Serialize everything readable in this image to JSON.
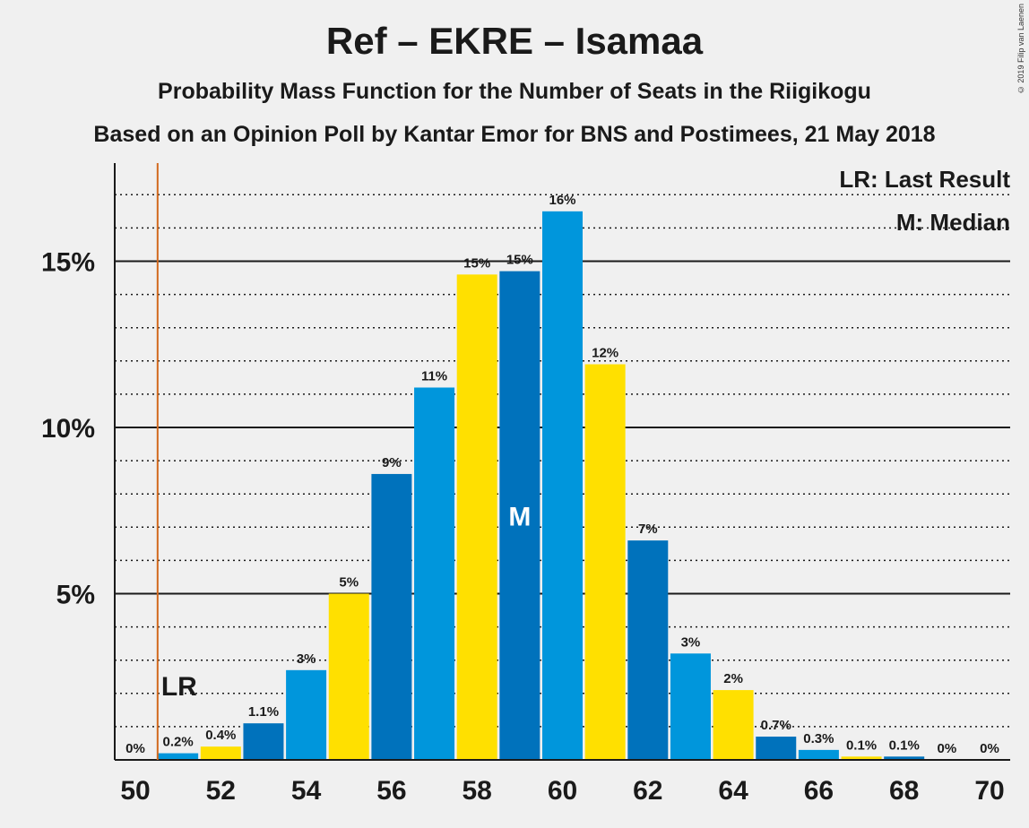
{
  "title": "Ref – EKRE – Isamaa",
  "subtitle": "Probability Mass Function for the Number of Seats in the Riigikogu",
  "subtitle2": "Based on an Opinion Poll by Kantar Emor for BNS and Postimees, 21 May 2018",
  "copyright": "© 2019 Filip van Laenen",
  "legend": {
    "lr": "LR: Last Result",
    "median": "M: Median"
  },
  "markers": {
    "lr_label": "LR",
    "median_label": "M"
  },
  "colors": {
    "dark_blue": "#0072bc",
    "light_blue": "#0096dc",
    "yellow": "#ffe000",
    "lr_line": "#d2691e",
    "label_white": "#ffffff"
  },
  "chart_data": {
    "type": "bar",
    "x": [
      50,
      51,
      52,
      53,
      54,
      55,
      56,
      57,
      58,
      59,
      60,
      61,
      62,
      63,
      64,
      65,
      66,
      67,
      68,
      69,
      70
    ],
    "values": [
      0,
      0.2,
      0.4,
      1.1,
      2.7,
      5.0,
      8.6,
      11.2,
      14.6,
      14.7,
      16.5,
      11.9,
      6.6,
      3.2,
      2.1,
      0.7,
      0.3,
      0.1,
      0.1,
      0,
      0
    ],
    "data_labels": [
      "0%",
      "0.2%",
      "0.4%",
      "1.1%",
      "3%",
      "5%",
      "9%",
      "11%",
      "15%",
      "15%",
      "16%",
      "12%",
      "7%",
      "3%",
      "2%",
      "0.7%",
      "0.3%",
      "0.1%",
      "0.1%",
      "0%",
      "0%"
    ],
    "color_cycle": [
      "dark_blue",
      "light_blue",
      "yellow"
    ],
    "x_ticks": [
      "50",
      "52",
      "54",
      "56",
      "58",
      "60",
      "62",
      "64",
      "66",
      "68",
      "70"
    ],
    "y_ticks": [
      "5%",
      "10%",
      "15%"
    ],
    "y_tick_values": [
      5,
      10,
      15
    ],
    "ylim": [
      0,
      18
    ],
    "minor_grid_step": 1,
    "last_result": 51,
    "median": 59
  }
}
